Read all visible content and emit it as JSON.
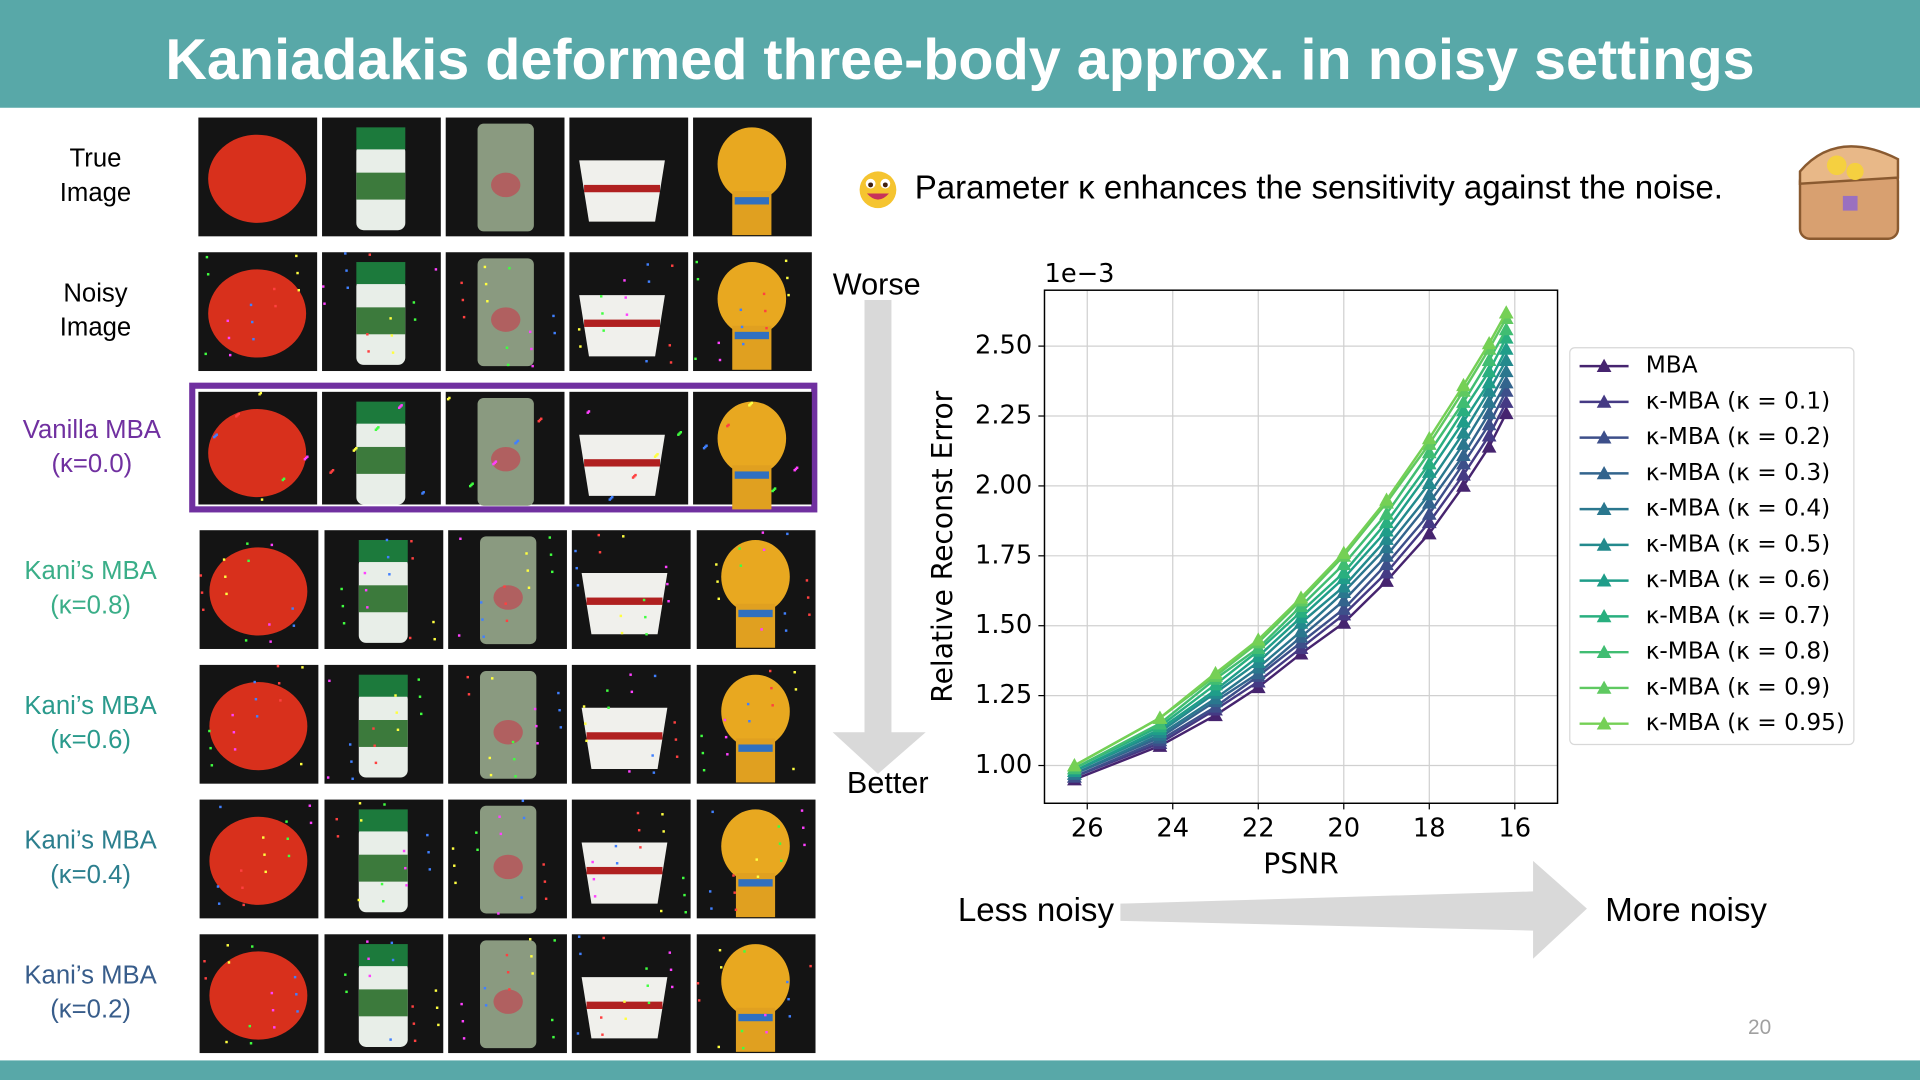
{
  "title": "Kaniadakis deformed three-body approx. in noisy settings",
  "rows": [
    {
      "label": [
        "True",
        "Image"
      ],
      "color": "#000000"
    },
    {
      "label": [
        "Noisy",
        "Image"
      ],
      "color": "#000000"
    },
    {
      "label": [
        "Vanilla MBA",
        "(κ=0.0)"
      ],
      "color": "#7030a0"
    },
    {
      "label": [
        "Kani’s MBA",
        "(κ=0.8)"
      ],
      "color": "#3aae88"
    },
    {
      "label": [
        "Kani’s MBA",
        "(κ=0.6)"
      ],
      "color": "#2a9a8c"
    },
    {
      "label": [
        "Kani’s MBA",
        "(κ=0.4)"
      ],
      "color": "#2c7f8e"
    },
    {
      "label": [
        "Kani’s MBA",
        "(κ=0.2)"
      ],
      "color": "#385d8b"
    }
  ],
  "note": "Parameter κ enhances the sensitivity against the noise.",
  "vertical_arrow": {
    "top": "Worse",
    "bottom": "Better"
  },
  "horizontal_arrow": {
    "left": "Less noisy",
    "right": "More noisy"
  },
  "page_number": "20",
  "chart_data": {
    "type": "line",
    "x_label": "PSNR",
    "y_label": "Relative Reconst Error",
    "y_scale_label": "1e−3",
    "x": [
      26.3,
      24.3,
      23.0,
      22.0,
      21.0,
      20.0,
      19.0,
      18.0,
      17.2,
      16.6,
      16.2
    ],
    "xlim": [
      27,
      15
    ],
    "ylim": [
      0.865,
      2.7
    ],
    "xticks": [
      26,
      24,
      22,
      20,
      18,
      16
    ],
    "yticks": [
      {
        "value": 1,
        "label": "1.00"
      },
      1.25,
      {
        "value": 1.5,
        "label": "1.50"
      },
      1.75,
      {
        "value": 2,
        "label": "2.00"
      },
      2.25,
      {
        "value": 2.5,
        "label": "2.50"
      }
    ],
    "grid": true,
    "legend": "outside right",
    "marker": "triangle",
    "series": [
      {
        "name": "MBA",
        "color": "#46246f",
        "values": [
          0.95,
          1.07,
          1.18,
          1.28,
          1.4,
          1.51,
          1.66,
          1.83,
          2.0,
          2.14,
          2.26
        ]
      },
      {
        "name": "κ-MBA (κ = 0.1)",
        "color": "#453a84",
        "values": [
          0.96,
          1.08,
          1.2,
          1.3,
          1.42,
          1.54,
          1.69,
          1.87,
          2.04,
          2.18,
          2.3
        ]
      },
      {
        "name": "κ-MBA (κ = 0.2)",
        "color": "#3d4f8a",
        "values": [
          0.96,
          1.09,
          1.21,
          1.32,
          1.44,
          1.56,
          1.72,
          1.9,
          2.08,
          2.22,
          2.34
        ]
      },
      {
        "name": "κ-MBA (κ = 0.3)",
        "color": "#33648d",
        "values": [
          0.97,
          1.1,
          1.23,
          1.33,
          1.46,
          1.59,
          1.75,
          1.94,
          2.11,
          2.26,
          2.37
        ]
      },
      {
        "name": "κ-MBA (κ = 0.4)",
        "color": "#2a778e",
        "values": [
          0.97,
          1.11,
          1.24,
          1.35,
          1.48,
          1.62,
          1.78,
          1.97,
          2.15,
          2.3,
          2.41
        ]
      },
      {
        "name": "κ-MBA (κ = 0.5)",
        "color": "#238a8d",
        "values": [
          0.98,
          1.12,
          1.26,
          1.37,
          1.51,
          1.64,
          1.81,
          2.01,
          2.19,
          2.34,
          2.45
        ]
      },
      {
        "name": "κ-MBA (κ = 0.6)",
        "color": "#1f9d89",
        "values": [
          0.98,
          1.13,
          1.27,
          1.39,
          1.53,
          1.67,
          1.84,
          2.05,
          2.23,
          2.37,
          2.49
        ]
      },
      {
        "name": "κ-MBA (κ = 0.7)",
        "color": "#29af7f",
        "values": [
          0.99,
          1.14,
          1.29,
          1.41,
          1.55,
          1.69,
          1.87,
          2.08,
          2.27,
          2.41,
          2.53
        ]
      },
      {
        "name": "κ-MBA (κ = 0.8)",
        "color": "#40bd72",
        "values": [
          0.99,
          1.15,
          1.31,
          1.42,
          1.57,
          1.72,
          1.9,
          2.12,
          2.3,
          2.45,
          2.56
        ]
      },
      {
        "name": "κ-MBA (κ = 0.9)",
        "color": "#5fc961",
        "values": [
          1.0,
          1.17,
          1.32,
          1.44,
          1.59,
          1.75,
          1.94,
          2.15,
          2.34,
          2.49,
          2.6
        ]
      },
      {
        "name": "κ-MBA (κ = 0.95)",
        "color": "#75d055",
        "values": [
          1.0,
          1.17,
          1.33,
          1.45,
          1.6,
          1.76,
          1.95,
          2.17,
          2.36,
          2.51,
          2.62
        ]
      }
    ]
  }
}
